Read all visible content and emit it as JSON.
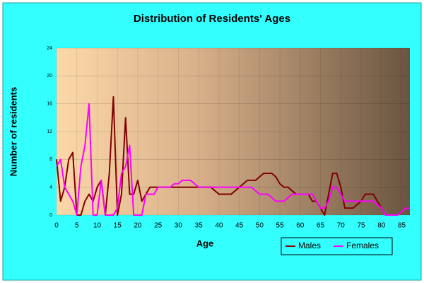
{
  "chart_data": {
    "type": "line",
    "title": "Distribution of Residents' Ages",
    "x_label": "Age",
    "y_label": "Number of residents",
    "x": [
      0,
      1,
      2,
      3,
      4,
      5,
      6,
      7,
      8,
      9,
      10,
      11,
      12,
      13,
      14,
      15,
      16,
      17,
      18,
      19,
      20,
      21,
      22,
      23,
      24,
      25,
      26,
      27,
      28,
      29,
      30,
      31,
      32,
      33,
      34,
      35,
      36,
      37,
      38,
      39,
      40,
      41,
      42,
      43,
      44,
      45,
      46,
      47,
      48,
      49,
      50,
      51,
      52,
      53,
      54,
      55,
      56,
      57,
      58,
      59,
      60,
      61,
      62,
      63,
      64,
      65,
      66,
      67,
      68,
      69,
      70,
      71,
      72,
      73,
      74,
      75,
      76,
      77,
      78,
      79,
      80,
      81,
      82,
      83,
      84,
      85,
      86,
      87
    ],
    "series": [
      {
        "name": "Males",
        "color": "#800000",
        "values": [
          8,
          2,
          4,
          8,
          9,
          0,
          0,
          2,
          3,
          2,
          4,
          5,
          0,
          6,
          17,
          0,
          3,
          14,
          3,
          3,
          5,
          2,
          3,
          4,
          4,
          4,
          4,
          4,
          4,
          4,
          4,
          4,
          4,
          4,
          4,
          4,
          4,
          4,
          4,
          3.5,
          3,
          3,
          3,
          3,
          3.5,
          4,
          4.5,
          5,
          5,
          5,
          5.5,
          6,
          6,
          6,
          5.5,
          4.5,
          4,
          4,
          3.5,
          3,
          3,
          3,
          3,
          2,
          2,
          1,
          0,
          3,
          6,
          6,
          4,
          1,
          1,
          1,
          1.5,
          2,
          3,
          3,
          3,
          2,
          1,
          0,
          0,
          0,
          0,
          0.5,
          1,
          1
        ]
      },
      {
        "name": "Females",
        "color": "#ff00ff",
        "values": [
          7,
          8,
          4,
          3,
          2,
          0,
          7,
          10,
          16,
          0,
          0,
          5,
          0,
          0,
          0,
          1,
          6,
          7,
          10,
          0,
          0,
          0,
          3,
          3,
          3,
          4,
          4,
          4,
          4,
          4.5,
          4.5,
          5,
          5,
          5,
          4.5,
          4,
          4,
          4,
          4,
          4,
          4,
          4,
          4,
          4,
          4,
          4,
          4,
          4,
          4,
          3.5,
          3,
          3,
          3,
          2.5,
          2,
          2,
          2,
          2.5,
          3,
          3,
          3,
          3,
          3,
          3,
          2,
          1,
          1,
          2,
          4,
          4,
          3,
          2,
          2,
          2,
          2,
          2,
          2,
          2,
          2,
          1.5,
          1,
          0,
          0,
          0,
          0,
          0.5,
          1,
          1
        ]
      }
    ],
    "xlim": [
      0,
      87
    ],
    "xticks": [
      0,
      5,
      10,
      15,
      20,
      25,
      30,
      35,
      40,
      45,
      50,
      55,
      60,
      65,
      70,
      75,
      80,
      85
    ],
    "ylim": [
      0,
      24
    ],
    "yticks": [
      0,
      4,
      8,
      12,
      16,
      20,
      24
    ],
    "grid": true,
    "legend": "bottom-right"
  }
}
